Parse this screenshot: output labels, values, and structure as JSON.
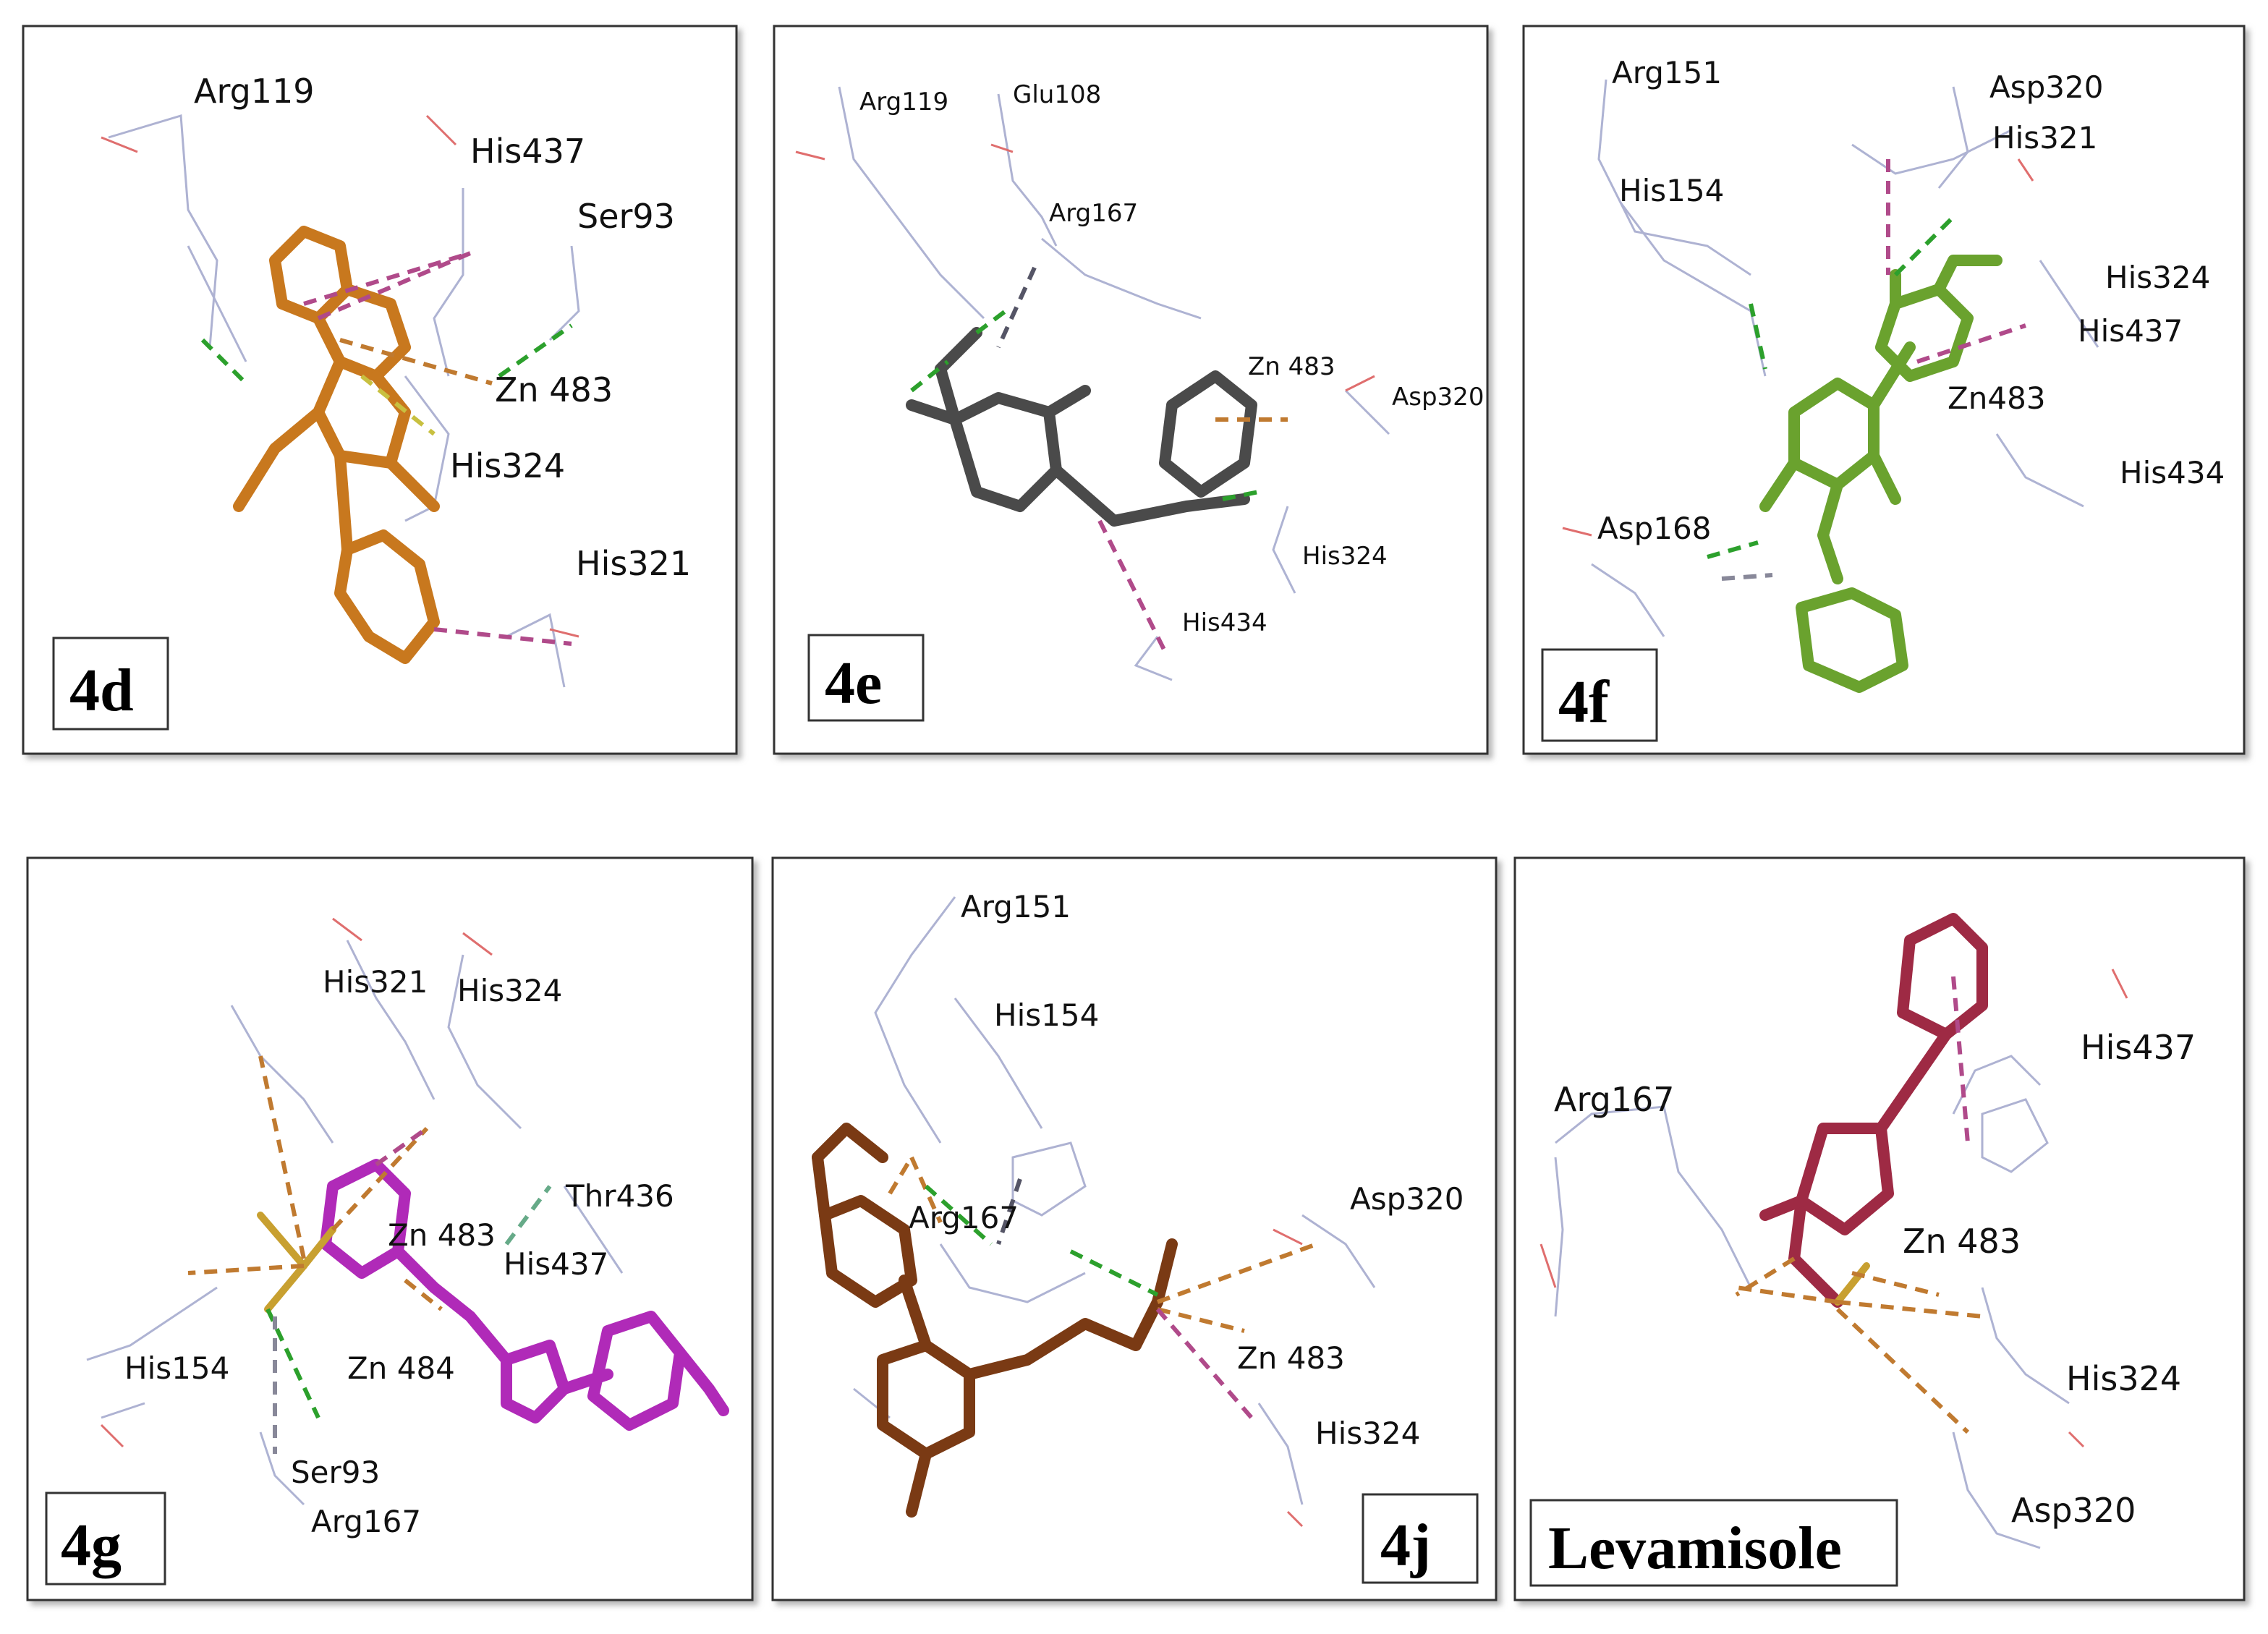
{
  "colors": {
    "ligand_4d": "#c8781e",
    "ligand_4e": "#4a4a4a",
    "ligand_4f": "#6aa22e",
    "ligand_4g": "#b02ab8",
    "ligand_4j": "#7a3a14",
    "ligand_levamisole": "#9e2a44",
    "hbond": "#2ca02c",
    "pi_interaction": "#b04a8a",
    "metal": "#c07a30",
    "residue_line": "#9aa0c8"
  },
  "panels": [
    {
      "tag": "4d",
      "residues": [
        "Arg119",
        "His437",
        "Ser93",
        "Zn 483",
        "His324",
        "His321"
      ]
    },
    {
      "tag": "4e",
      "residues": [
        "Arg119",
        "Glu108",
        "Arg167",
        "Zn 483",
        "Asp320",
        "His324",
        "His434"
      ]
    },
    {
      "tag": "4f",
      "residues": [
        "Arg151",
        "Asp320",
        "His321",
        "His154",
        "His324",
        "His437",
        "Zn483",
        "His434",
        "Asp168"
      ]
    },
    {
      "tag": "4g",
      "residues": [
        "His321",
        "His324",
        "Thr436",
        "Zn 483",
        "His437",
        "His154",
        "Zn 484",
        "Ser93",
        "Arg167"
      ]
    },
    {
      "tag": "4j",
      "residues": [
        "Arg151",
        "His154",
        "Arg167",
        "Asp320",
        "Zn 483",
        "His324"
      ]
    },
    {
      "tag": "Levamisole",
      "residues": [
        "His437",
        "Arg167",
        "Zn 483",
        "His324",
        "Asp320"
      ]
    }
  ]
}
